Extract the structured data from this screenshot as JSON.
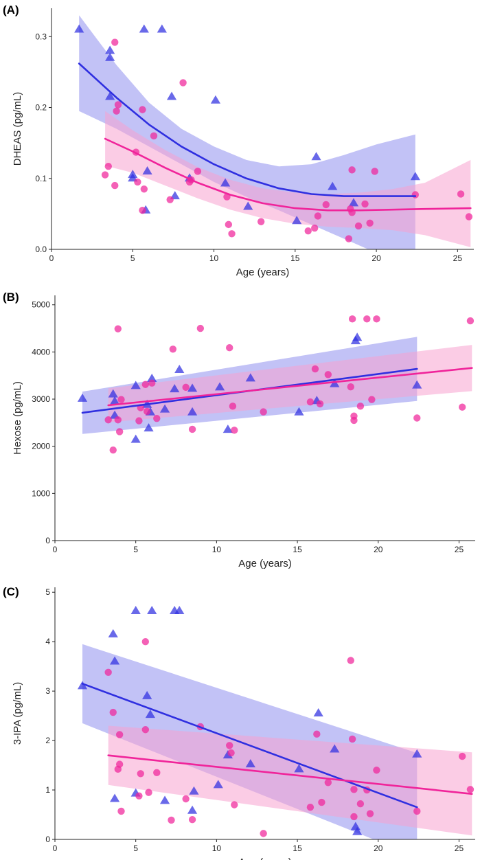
{
  "colors": {
    "group_a": "#2f2fe0",
    "group_a_band": "#9a9af0",
    "group_b": "#f0249a",
    "group_b_band": "#f7a3cf",
    "axis": "#222222"
  },
  "chart_data": [
    {
      "panel": "(A)",
      "type": "scatter",
      "xlabel": "Age (years)",
      "ylabel": "DHEAS (pg/mL)",
      "xlim": [
        0,
        26
      ],
      "ylim": [
        0,
        0.34
      ],
      "xticks": [
        0,
        5,
        10,
        15,
        20,
        25
      ],
      "yticks": [
        0.0,
        0.1,
        0.2,
        0.3
      ],
      "ytick_labels": [
        "0.0",
        "0.1",
        "0.2",
        "0.3"
      ],
      "series": [
        {
          "name": "triangles",
          "marker": "triangle",
          "color_key": "group_a",
          "points": [
            [
              1.7,
              0.31
            ],
            [
              3.6,
              0.28
            ],
            [
              3.6,
              0.27
            ],
            [
              3.6,
              0.215
            ],
            [
              5.0,
              0.105
            ],
            [
              5.0,
              0.1
            ],
            [
              5.7,
              0.31
            ],
            [
              5.8,
              0.055
            ],
            [
              5.9,
              0.11
            ],
            [
              6.8,
              0.31
            ],
            [
              7.4,
              0.215
            ],
            [
              7.6,
              0.075
            ],
            [
              8.5,
              0.1
            ],
            [
              10.1,
              0.21
            ],
            [
              10.7,
              0.093
            ],
            [
              12.1,
              0.06
            ],
            [
              15.1,
              0.04
            ],
            [
              16.3,
              0.13
            ],
            [
              17.3,
              0.088
            ],
            [
              18.6,
              0.065
            ],
            [
              22.4,
              0.102
            ]
          ],
          "fit": {
            "x": [
              1.7,
              4,
              6,
              8,
              10,
              12,
              14,
              16,
              18,
              20,
              22.4
            ],
            "y": [
              0.262,
              0.214,
              0.176,
              0.145,
              0.12,
              0.1,
              0.086,
              0.078,
              0.075,
              0.075,
              0.075
            ],
            "lo": [
              0.195,
              0.17,
              0.145,
              0.12,
              0.095,
              0.074,
              0.055,
              0.035,
              0.015,
              -0.005,
              -0.02
            ],
            "hi": [
              0.33,
              0.26,
              0.207,
              0.17,
              0.145,
              0.126,
              0.117,
              0.12,
              0.133,
              0.148,
              0.162
            ]
          }
        },
        {
          "name": "circles",
          "marker": "circle",
          "color_key": "group_b",
          "points": [
            [
              3.3,
              0.105
            ],
            [
              3.5,
              0.117
            ],
            [
              3.9,
              0.292
            ],
            [
              3.9,
              0.09
            ],
            [
              4.0,
              0.195
            ],
            [
              4.1,
              0.204
            ],
            [
              5.2,
              0.137
            ],
            [
              5.3,
              0.095
            ],
            [
              5.6,
              0.055
            ],
            [
              5.6,
              0.197
            ],
            [
              5.7,
              0.085
            ],
            [
              6.3,
              0.16
            ],
            [
              7.3,
              0.07
            ],
            [
              8.1,
              0.235
            ],
            [
              8.5,
              0.095
            ],
            [
              8.6,
              0.098
            ],
            [
              9.0,
              0.11
            ],
            [
              10.8,
              0.074
            ],
            [
              10.9,
              0.035
            ],
            [
              11.1,
              0.022
            ],
            [
              12.9,
              0.039
            ],
            [
              15.8,
              0.026
            ],
            [
              16.2,
              0.03
            ],
            [
              16.4,
              0.047
            ],
            [
              16.9,
              0.063
            ],
            [
              18.3,
              0.015
            ],
            [
              18.4,
              0.057
            ],
            [
              18.5,
              0.112
            ],
            [
              18.5,
              0.052
            ],
            [
              18.9,
              0.033
            ],
            [
              19.3,
              0.064
            ],
            [
              19.6,
              0.037
            ],
            [
              19.9,
              0.11
            ],
            [
              22.4,
              0.077
            ],
            [
              25.2,
              0.078
            ],
            [
              25.7,
              0.046
            ]
          ],
          "fit": {
            "x": [
              3.3,
              5,
              7,
              9,
              11,
              13,
              15,
              17,
              19,
              21,
              23,
              25.8
            ],
            "y": [
              0.156,
              0.138,
              0.115,
              0.094,
              0.077,
              0.065,
              0.058,
              0.055,
              0.055,
              0.056,
              0.057,
              0.058
            ],
            "lo": [
              0.118,
              0.108,
              0.09,
              0.072,
              0.056,
              0.044,
              0.036,
              0.032,
              0.03,
              0.027,
              0.02,
              0.003
            ],
            "hi": [
              0.195,
              0.168,
              0.14,
              0.116,
              0.098,
              0.086,
              0.08,
              0.078,
              0.08,
              0.085,
              0.094,
              0.126
            ]
          }
        }
      ]
    },
    {
      "panel": "(B)",
      "type": "scatter",
      "xlabel": "Age (years)",
      "ylabel": "Hexose (pg/mL)",
      "xlim": [
        0,
        26
      ],
      "ylim": [
        0,
        5200
      ],
      "xticks": [
        0,
        5,
        10,
        15,
        20,
        25
      ],
      "yticks": [
        0,
        1000,
        2000,
        3000,
        4000,
        5000
      ],
      "ytick_labels": [
        "0",
        "1000",
        "2000",
        "3000",
        "4000",
        "5000"
      ],
      "series": [
        {
          "name": "triangles",
          "marker": "triangle",
          "color_key": "group_a",
          "points": [
            [
              1.7,
              3010
            ],
            [
              3.6,
              3100
            ],
            [
              3.7,
              2950
            ],
            [
              3.7,
              2650
            ],
            [
              5.0,
              3280
            ],
            [
              5.0,
              2140
            ],
            [
              5.7,
              2880
            ],
            [
              5.8,
              2380
            ],
            [
              5.9,
              2720
            ],
            [
              6.0,
              3430
            ],
            [
              6.8,
              2780
            ],
            [
              7.4,
              3210
            ],
            [
              7.7,
              3620
            ],
            [
              8.5,
              3220
            ],
            [
              8.5,
              2720
            ],
            [
              10.2,
              3250
            ],
            [
              10.7,
              2350
            ],
            [
              12.1,
              3440
            ],
            [
              15.1,
              2720
            ],
            [
              16.2,
              2960
            ],
            [
              17.3,
              3320
            ],
            [
              18.6,
              4230
            ],
            [
              18.7,
              4300
            ],
            [
              22.4,
              3290
            ]
          ],
          "fit": {
            "x": [
              1.7,
              22.4
            ],
            "y": [
              2710,
              3640
            ],
            "lo": [
              2260,
              2960
            ],
            "hi": [
              3160,
              4320
            ]
          }
        },
        {
          "name": "circles",
          "marker": "circle",
          "color_key": "group_b",
          "points": [
            [
              3.3,
              2560
            ],
            [
              3.6,
              1920
            ],
            [
              3.9,
              2560
            ],
            [
              3.9,
              4490
            ],
            [
              4.0,
              2310
            ],
            [
              4.1,
              2990
            ],
            [
              5.2,
              2540
            ],
            [
              5.3,
              2820
            ],
            [
              5.6,
              3310
            ],
            [
              5.7,
              2740
            ],
            [
              6.0,
              3340
            ],
            [
              6.3,
              2590
            ],
            [
              7.3,
              4060
            ],
            [
              8.1,
              3250
            ],
            [
              8.5,
              2360
            ],
            [
              9.0,
              4500
            ],
            [
              10.8,
              4090
            ],
            [
              11.0,
              2850
            ],
            [
              11.1,
              2340
            ],
            [
              12.9,
              2730
            ],
            [
              15.8,
              2940
            ],
            [
              16.1,
              3640
            ],
            [
              16.4,
              2900
            ],
            [
              16.9,
              3520
            ],
            [
              18.3,
              3260
            ],
            [
              18.4,
              4700
            ],
            [
              18.5,
              2640
            ],
            [
              18.5,
              2550
            ],
            [
              18.9,
              2850
            ],
            [
              19.3,
              4700
            ],
            [
              19.6,
              2990
            ],
            [
              19.9,
              4700
            ],
            [
              22.4,
              2600
            ],
            [
              25.2,
              2830
            ],
            [
              25.7,
              4660
            ]
          ],
          "fit": {
            "x": [
              3.3,
              25.8
            ],
            "y": [
              2870,
              3660
            ],
            "lo": [
              2510,
              3170
            ],
            "hi": [
              3230,
              4150
            ]
          }
        }
      ]
    },
    {
      "panel": "(C)",
      "type": "scatter",
      "xlabel": "Age (years)",
      "ylabel": "3-IPA (pg/mL)",
      "xlim": [
        0,
        26
      ],
      "ylim": [
        0,
        5.1
      ],
      "xticks": [
        0,
        5,
        10,
        15,
        20,
        25
      ],
      "yticks": [
        0,
        1,
        2,
        3,
        4,
        5
      ],
      "ytick_labels": [
        "0",
        "1",
        "2",
        "3",
        "4",
        "5"
      ],
      "series": [
        {
          "name": "triangles",
          "marker": "triangle",
          "color_key": "group_a",
          "points": [
            [
              1.7,
              3.1
            ],
            [
              3.6,
              4.15
            ],
            [
              3.7,
              3.6
            ],
            [
              3.7,
              0.82
            ],
            [
              5.0,
              4.62
            ],
            [
              5.0,
              0.93
            ],
            [
              5.7,
              2.9
            ],
            [
              5.9,
              2.52
            ],
            [
              6.0,
              4.62
            ],
            [
              6.8,
              0.78
            ],
            [
              7.4,
              4.62
            ],
            [
              7.7,
              4.62
            ],
            [
              8.5,
              0.58
            ],
            [
              8.6,
              0.97
            ],
            [
              10.1,
              1.1
            ],
            [
              10.7,
              1.7
            ],
            [
              12.1,
              1.52
            ],
            [
              15.1,
              1.42
            ],
            [
              16.3,
              2.55
            ],
            [
              17.3,
              1.82
            ],
            [
              18.6,
              0.25
            ],
            [
              18.7,
              0.15
            ],
            [
              22.4,
              1.72
            ]
          ],
          "fit": {
            "x": [
              1.7,
              22.4
            ],
            "y": [
              3.15,
              0.65
            ],
            "lo": [
              2.35,
              -0.35
            ],
            "hi": [
              3.95,
              1.75
            ]
          }
        },
        {
          "name": "circles",
          "marker": "circle",
          "color_key": "group_b",
          "points": [
            [
              3.3,
              3.38
            ],
            [
              3.6,
              2.57
            ],
            [
              3.9,
              1.42
            ],
            [
              4.0,
              2.12
            ],
            [
              4.0,
              1.52
            ],
            [
              4.1,
              0.57
            ],
            [
              5.2,
              0.88
            ],
            [
              5.3,
              1.33
            ],
            [
              5.6,
              2.22
            ],
            [
              5.6,
              4.0
            ],
            [
              5.8,
              0.95
            ],
            [
              6.3,
              1.35
            ],
            [
              7.2,
              0.39
            ],
            [
              8.1,
              0.82
            ],
            [
              8.5,
              0.4
            ],
            [
              9.0,
              2.28
            ],
            [
              10.8,
              1.9
            ],
            [
              10.9,
              1.75
            ],
            [
              11.1,
              0.7
            ],
            [
              12.9,
              0.12
            ],
            [
              15.8,
              0.65
            ],
            [
              16.2,
              2.13
            ],
            [
              16.5,
              0.75
            ],
            [
              16.9,
              1.15
            ],
            [
              18.3,
              3.62
            ],
            [
              18.4,
              2.03
            ],
            [
              18.5,
              1.01
            ],
            [
              18.5,
              0.46
            ],
            [
              18.9,
              0.72
            ],
            [
              19.3,
              1.0
            ],
            [
              19.5,
              0.52
            ],
            [
              19.9,
              1.4
            ],
            [
              22.4,
              0.57
            ],
            [
              25.2,
              1.68
            ],
            [
              25.7,
              1.01
            ]
          ],
          "fit": {
            "x": [
              3.3,
              25.8
            ],
            "y": [
              1.7,
              0.92
            ],
            "lo": [
              1.1,
              0.08
            ],
            "hi": [
              2.3,
              1.76
            ]
          }
        }
      ]
    }
  ]
}
